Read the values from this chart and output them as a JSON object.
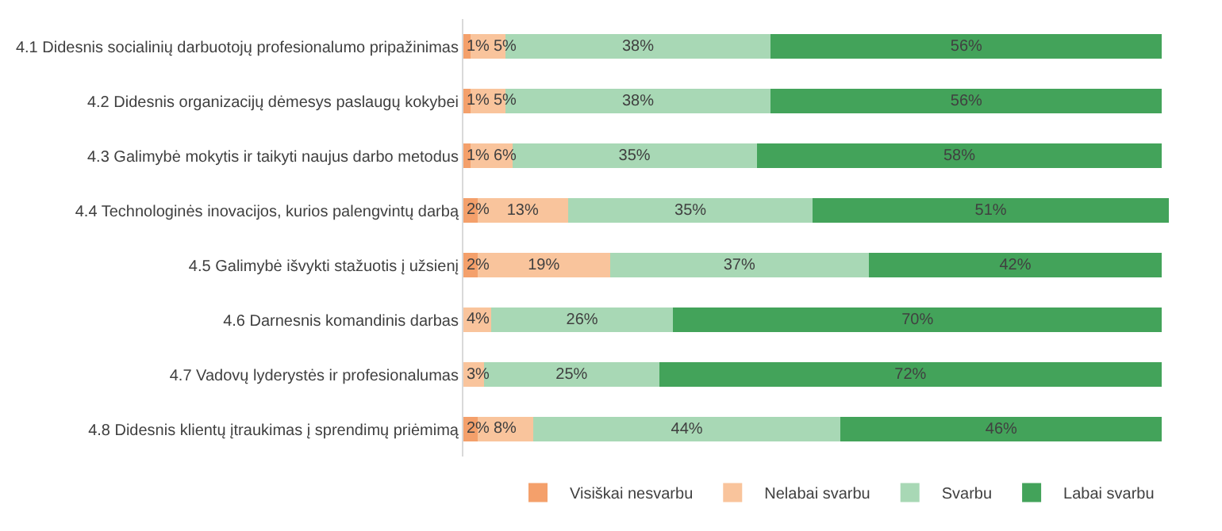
{
  "chart_data": {
    "type": "bar",
    "orientation": "horizontal",
    "stacked": true,
    "legend": "bottom",
    "tick_labels": "y",
    "grid": false,
    "categories": [
      "4.1 Didesnis socialinių darbuotojų profesionalumo pripažinimas",
      "4.2 Didesnis organizacijų dėmesys paslaugų kokybei",
      "4.3 Galimybė mokytis ir taikyti naujus darbo metodus",
      "4.4 Technologinės inovacijos, kurios palengvintų darbą",
      "4.5 Galimybė išvykti stažuotis į užsienį",
      "4.6 Darnesnis komandinis darbas",
      "4.7 Vadovų lyderystės ir profesionalumas",
      "4.8 Didesnis klientų įtraukimas į sprendimų priėmimą"
    ],
    "series": [
      {
        "name": "Visiškai nesvarbu",
        "color": "#f4a06b",
        "values": [
          1,
          1,
          1,
          2,
          2,
          null,
          null,
          2
        ],
        "value_labels": [
          "1%",
          "1%",
          "1%",
          "2%",
          "2%",
          null,
          null,
          "2%"
        ]
      },
      {
        "name": "Nelabai svarbu",
        "color": "#f9c49c",
        "values": [
          5,
          5,
          6,
          13,
          19,
          4,
          3,
          8
        ],
        "value_labels": [
          "5%",
          "5%",
          "6%",
          "13%",
          "19%",
          "4%",
          "3%",
          "8%"
        ]
      },
      {
        "name": "Svarbu",
        "color": "#a8d8b5",
        "values": [
          38,
          38,
          35,
          35,
          37,
          26,
          25,
          44
        ],
        "value_labels": [
          "38%",
          "38%",
          "35%",
          "35%",
          "37%",
          "26%",
          "25%",
          "44%"
        ]
      },
      {
        "name": "Labai svarbu",
        "color": "#43a35a",
        "values": [
          56,
          56,
          58,
          51,
          42,
          70,
          72,
          46
        ],
        "value_labels": [
          "56%",
          "56%",
          "58%",
          "51%",
          "42%",
          "70%",
          "72%",
          "46%"
        ]
      }
    ]
  }
}
